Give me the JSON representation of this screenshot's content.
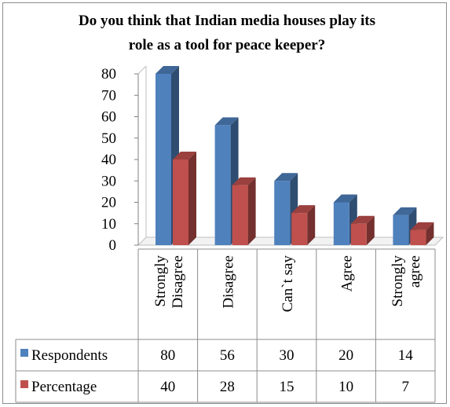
{
  "chart_data": {
    "type": "bar",
    "title": "Do you think that Indian media houses play its role as a tool for peace keeper?",
    "title_lines": [
      "Do you think that Indian media  houses play its",
      "role as a tool for peace keeper?"
    ],
    "categories": [
      "Strongly Disagree",
      "Disagree",
      "Can`t say",
      "Agree",
      "Strongly agree"
    ],
    "category_lines": [
      [
        "Strongly",
        "Disagree"
      ],
      [
        "Disagree"
      ],
      [
        "Can`t say"
      ],
      [
        "Agree"
      ],
      [
        "Strongly",
        "agree"
      ]
    ],
    "series": [
      {
        "name": "Respondents",
        "values": [
          80,
          56,
          30,
          20,
          14
        ],
        "color": "#4f81bd"
      },
      {
        "name": "Percentage",
        "values": [
          40,
          28,
          15,
          10,
          7
        ],
        "color": "#c0504d"
      }
    ],
    "ylim": [
      0,
      80
    ],
    "yticks": [
      0,
      10,
      20,
      30,
      40,
      50,
      60,
      70,
      80
    ],
    "xlabel": "",
    "ylabel": "",
    "grid": false,
    "legend": "data-table"
  }
}
